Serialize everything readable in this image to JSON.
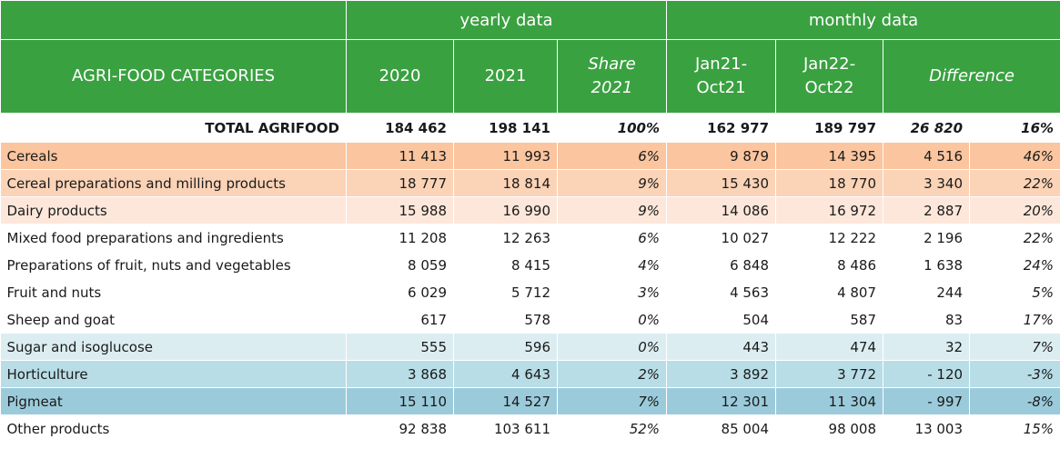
{
  "header": {
    "yearly_label": "yearly data",
    "monthly_label": "monthly data",
    "categories_label": "AGRI-FOOD CATEGORIES",
    "col_2020": "2020",
    "col_2021": "2021",
    "share_line1": "Share",
    "share_line2": "2021",
    "jan21_line1": "Jan21-",
    "jan21_line2": "Oct21",
    "jan22_line1": "Jan22-",
    "jan22_line2": "Oct22",
    "difference_label": "Difference"
  },
  "colors": {
    "header_green": "#3aa141",
    "orange_1": "#fbc59f",
    "orange_2": "#fbd3b7",
    "orange_3": "#fde7da",
    "blue_1": "#dcedf2",
    "blue_2": "#b8dde6",
    "blue_3": "#9bcbdb"
  },
  "total": {
    "label": "TOTAL AGRIFOOD",
    "v2020": "184 462",
    "v2021": "198 141",
    "share": "100%",
    "jan21": "162 977",
    "jan22": "189 797",
    "diff": "26 820",
    "diff_pct": "16%"
  },
  "rows": [
    {
      "label": "Cereals",
      "v2020": "11 413",
      "v2021": "11 993",
      "share": "6%",
      "jan21": "9 879",
      "jan22": "14 395",
      "diff": "4 516",
      "diff_pct": "46%",
      "bg": "#fbc59f"
    },
    {
      "label": "Cereal preparations and milling products",
      "v2020": "18 777",
      "v2021": "18 814",
      "share": "9%",
      "jan21": "15 430",
      "jan22": "18 770",
      "diff": "3 340",
      "diff_pct": "22%",
      "bg": "#fbd3b7"
    },
    {
      "label": "Dairy products",
      "v2020": "15 988",
      "v2021": "16 990",
      "share": "9%",
      "jan21": "14 086",
      "jan22": "16 972",
      "diff": "2 887",
      "diff_pct": "20%",
      "bg": "#fde7da"
    },
    {
      "label": "Mixed food preparations and ingredients",
      "v2020": "11 208",
      "v2021": "12 263",
      "share": "6%",
      "jan21": "10 027",
      "jan22": "12 222",
      "diff": "2 196",
      "diff_pct": "22%",
      "bg": "#ffffff"
    },
    {
      "label": "Preparations of fruit, nuts and vegetables",
      "v2020": "8 059",
      "v2021": "8 415",
      "share": "4%",
      "jan21": "6 848",
      "jan22": "8 486",
      "diff": "1 638",
      "diff_pct": "24%",
      "bg": "#ffffff"
    },
    {
      "label": "Fruit and nuts",
      "v2020": "6 029",
      "v2021": "5 712",
      "share": "3%",
      "jan21": "4 563",
      "jan22": "4 807",
      "diff": "244",
      "diff_pct": "5%",
      "bg": "#ffffff"
    },
    {
      "label": "Sheep and goat",
      "v2020": "617",
      "v2021": "578",
      "share": "0%",
      "jan21": "504",
      "jan22": "587",
      "diff": "83",
      "diff_pct": "17%",
      "bg": "#ffffff"
    },
    {
      "label": "Sugar and isoglucose",
      "v2020": "555",
      "v2021": "596",
      "share": "0%",
      "jan21": "443",
      "jan22": "474",
      "diff": "32",
      "diff_pct": "7%",
      "bg": "#dcedf2"
    },
    {
      "label": "Horticulture",
      "v2020": "3 868",
      "v2021": "4 643",
      "share": "2%",
      "jan21": "3 892",
      "jan22": "3 772",
      "diff": "- 120",
      "diff_pct": "-3%",
      "bg": "#b8dde6"
    },
    {
      "label": "Pigmeat",
      "v2020": "15 110",
      "v2021": "14 527",
      "share": "7%",
      "jan21": "12 301",
      "jan22": "11 304",
      "diff": "- 997",
      "diff_pct": "-8%",
      "bg": "#9bcbdb"
    },
    {
      "label": "Other products",
      "v2020": "92 838",
      "v2021": "103 611",
      "share": "52%",
      "jan21": "85 004",
      "jan22": "98 008",
      "diff": "13 003",
      "diff_pct": "15%",
      "bg": "#ffffff"
    }
  ]
}
